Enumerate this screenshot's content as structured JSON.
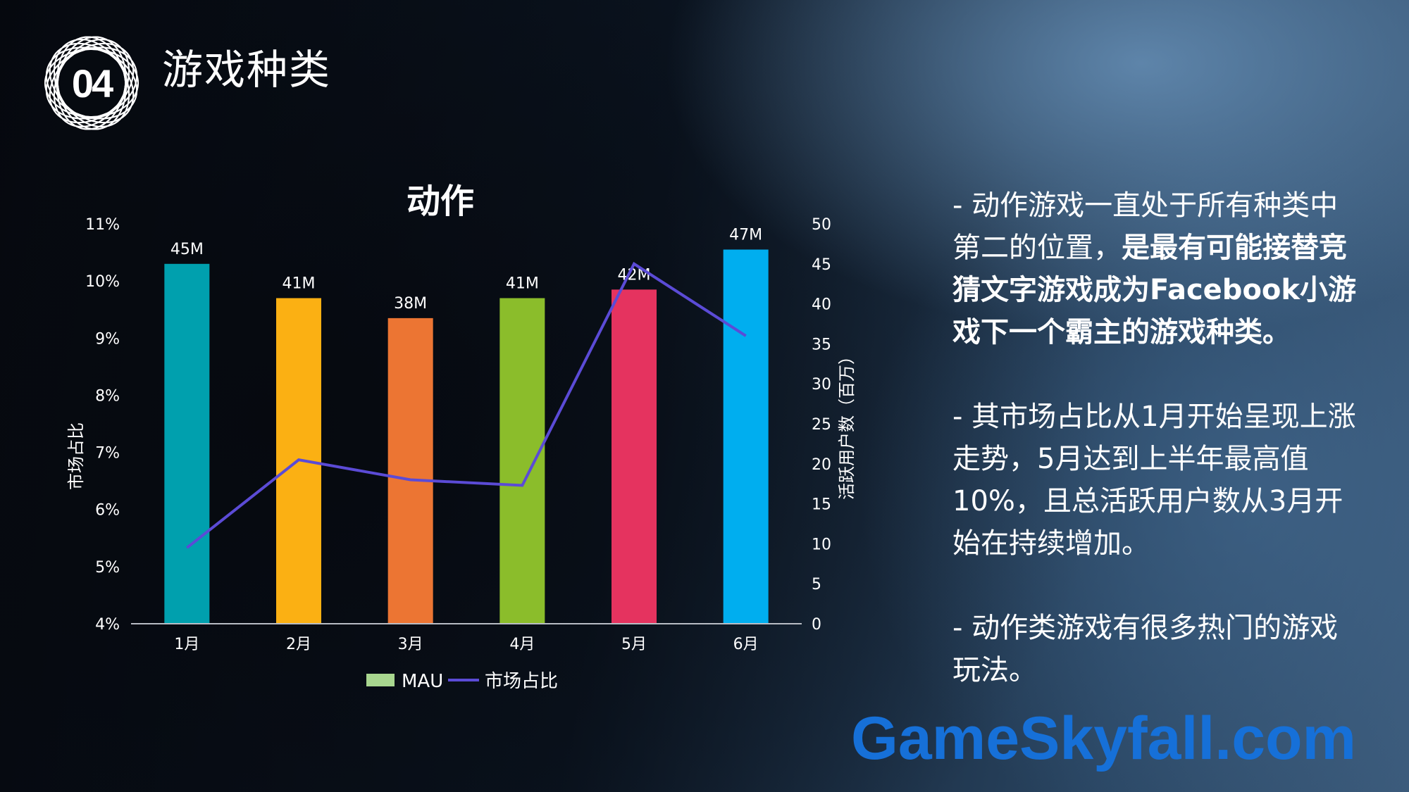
{
  "header": {
    "section_number": "04",
    "title": "游戏种类"
  },
  "chart_data": {
    "type": "bar",
    "title": "动作",
    "categories": [
      "1月",
      "2月",
      "3月",
      "4月",
      "5月",
      "6月"
    ],
    "series": [
      {
        "name": "MAU",
        "type": "bar",
        "axis": "left",
        "values": [
          10.3,
          9.7,
          9.35,
          9.7,
          9.85,
          10.55
        ],
        "data_labels": [
          "45M",
          "41M",
          "38M",
          "41M",
          "42M",
          "47M"
        ],
        "colors": [
          "#00a0ae",
          "#fbb013",
          "#ec7533",
          "#8bbd2b",
          "#e5335f",
          "#00aeef"
        ],
        "legend_swatch_color": "#a8d68f"
      },
      {
        "name": "市场占比",
        "type": "line",
        "axis": "right",
        "values": [
          9.5,
          20.5,
          18,
          17.3,
          45,
          36
        ],
        "color": "#5b4bd6"
      }
    ],
    "left_axis": {
      "label": "市场占比",
      "ticks": [
        "4%",
        "5%",
        "6%",
        "7%",
        "8%",
        "9%",
        "10%",
        "11%"
      ],
      "range": [
        4,
        11
      ]
    },
    "right_axis": {
      "label": "活跃用户数（百万）",
      "ticks": [
        "0",
        "5",
        "10",
        "15",
        "20",
        "25",
        "30",
        "35",
        "40",
        "45",
        "50"
      ],
      "range": [
        0,
        50
      ]
    },
    "legend_position": "bottom",
    "grid": false
  },
  "side_text": {
    "p1_normal": "- 动作游戏一直处于所有种类中第二的位置，",
    "p1_bold": "是最有可能接替竞猜文字游戏成为Facebook小游戏下一个霸主的游戏种类。",
    "p2": "- 其市场占比从1月开始呈现上涨走势，5月达到上半年最高值10%，且总活跃用户数从3月开始在持续增加。",
    "p3": "- 动作类游戏有很多热门的游戏玩法。"
  },
  "watermark": "GameSkyfall.com"
}
